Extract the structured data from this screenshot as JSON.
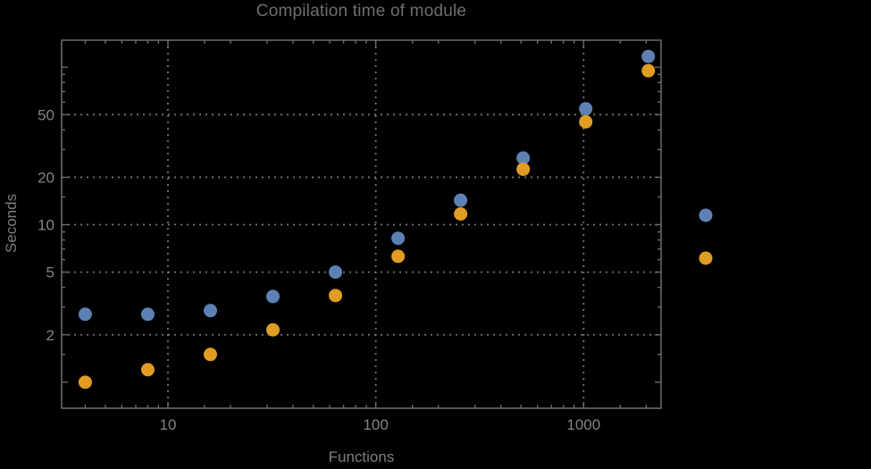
{
  "chart_data": {
    "type": "scatter",
    "title": "Compilation time of module",
    "xlabel": "Functions",
    "ylabel": "Seconds",
    "x_scale": "log",
    "y_scale": "log",
    "grid": "dotted",
    "x_range": [
      3.1,
      2350
    ],
    "y_range": [
      0.68,
      148
    ],
    "x": [
      4,
      8,
      16,
      32,
      64,
      128,
      256,
      512,
      1024,
      2048
    ],
    "series": [
      {
        "name": "series-blue",
        "color": "#5E81B5",
        "values": [
          2.7,
          2.7,
          2.85,
          3.5,
          5.0,
          8.2,
          14.3,
          26.5,
          54.5,
          117
        ]
      },
      {
        "name": "series-orange",
        "color": "#E19C24",
        "values": [
          1.0,
          1.2,
          1.5,
          2.15,
          3.55,
          6.3,
          11.7,
          22.5,
          45,
          95
        ]
      }
    ],
    "x_tick_labels": [
      "10",
      "100",
      "1000"
    ],
    "x_ticks_labeled": [
      10,
      100,
      1000
    ],
    "y_tick_labels": [
      "2",
      "5",
      "10",
      "20",
      "50"
    ],
    "y_ticks_labeled": [
      2,
      5,
      10,
      20,
      50
    ],
    "y_ticks_unlabeled_major": [
      1,
      100
    ],
    "legend_markers": [
      {
        "name": "legend-marker-blue",
        "color": "#5E81B5",
        "x": 790,
        "y": 241
      },
      {
        "name": "legend-marker-orange",
        "color": "#E19C24",
        "x": 790,
        "y": 289
      }
    ],
    "colors": {
      "background": "#000000",
      "frame": "#6f6f6f",
      "grid": "#757575",
      "text": "#848484"
    }
  }
}
